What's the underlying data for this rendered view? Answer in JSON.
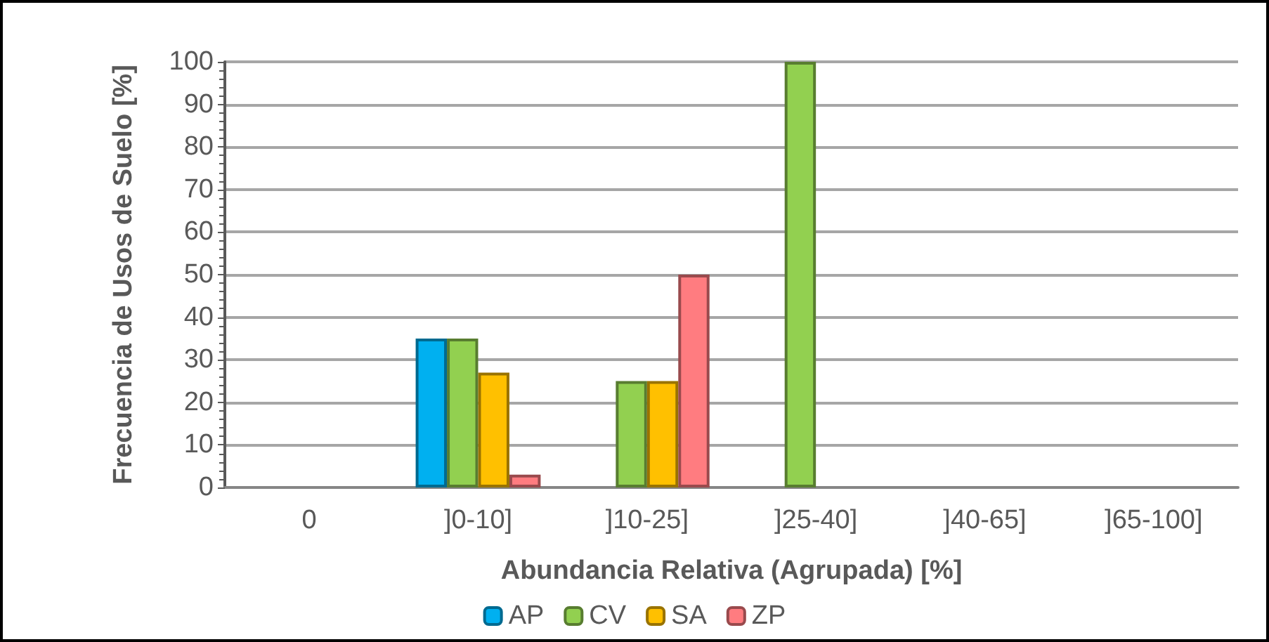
{
  "chart_data": {
    "type": "bar",
    "xlabel": "Abundancia Relativa (Agrupada) [%]",
    "ylabel": "Frecuencia de Usos de Suelo [%]",
    "categories": [
      "0",
      "]0-10]",
      "]10-25]",
      "]25-40]",
      "]40-65]",
      "]65-100]"
    ],
    "series": [
      {
        "name": "AP",
        "color": "#00b0f0",
        "values": [
          0,
          35,
          0,
          0,
          0,
          0
        ]
      },
      {
        "name": "CV",
        "color": "#92d050",
        "values": [
          0,
          35,
          25,
          100,
          0,
          0
        ]
      },
      {
        "name": "SA",
        "color": "#ffc000",
        "values": [
          0,
          27,
          25,
          0,
          0,
          0
        ]
      },
      {
        "name": "ZP",
        "color": "#ff7c80",
        "values": [
          0,
          3,
          50,
          0,
          0,
          0
        ]
      }
    ],
    "ylim": [
      0,
      100
    ],
    "yticks": [
      0,
      10,
      20,
      30,
      40,
      50,
      60,
      70,
      80,
      90,
      100
    ],
    "grid": "y",
    "legend": "bottom"
  }
}
